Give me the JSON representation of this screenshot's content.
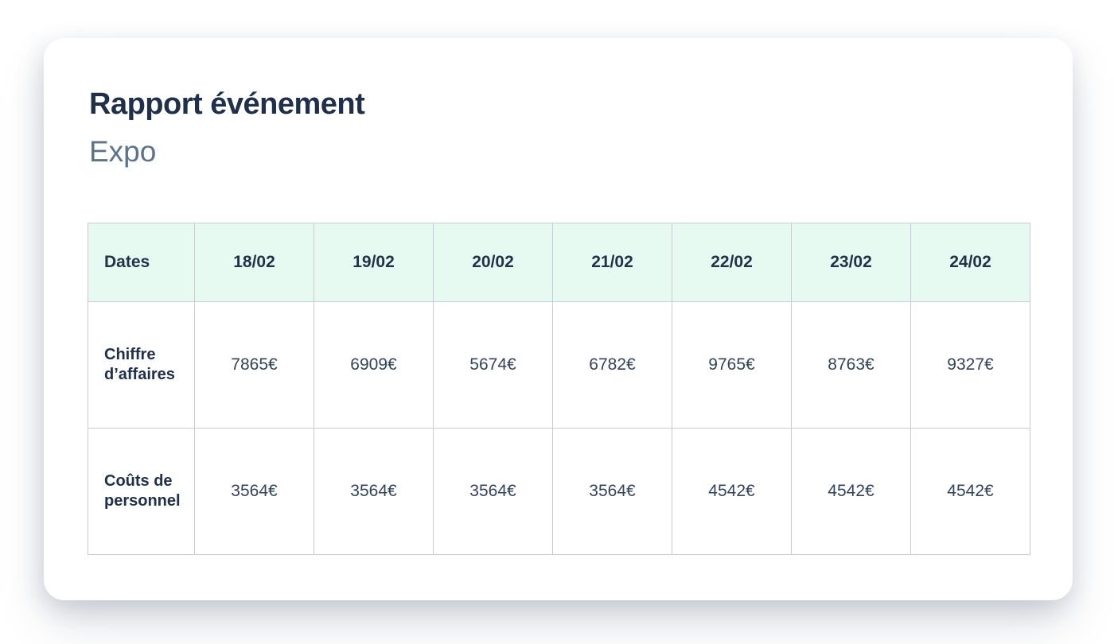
{
  "page": {
    "title": "Rapport événement",
    "subtitle": "Expo"
  },
  "table": {
    "header": [
      "Dates",
      "18/02",
      "19/02",
      "20/02",
      "21/02",
      "22/02",
      "23/02",
      "24/02"
    ],
    "rows": [
      {
        "label": "Chiffre d’affaires",
        "values": [
          "7865€",
          "6909€",
          "5674€",
          "6782€",
          "9765€",
          "8763€",
          "9327€"
        ]
      },
      {
        "label": "Coûts de personnel",
        "values": [
          "3564€",
          "3564€",
          "3564€",
          "3564€",
          "4542€",
          "4542€",
          "4542€"
        ]
      }
    ]
  },
  "colors": {
    "header_background": "#e7faf1",
    "table_border": "#c9cdd1",
    "title_text": "#20304a",
    "subtitle_text": "#5d7389",
    "value_text": "#33435c"
  }
}
